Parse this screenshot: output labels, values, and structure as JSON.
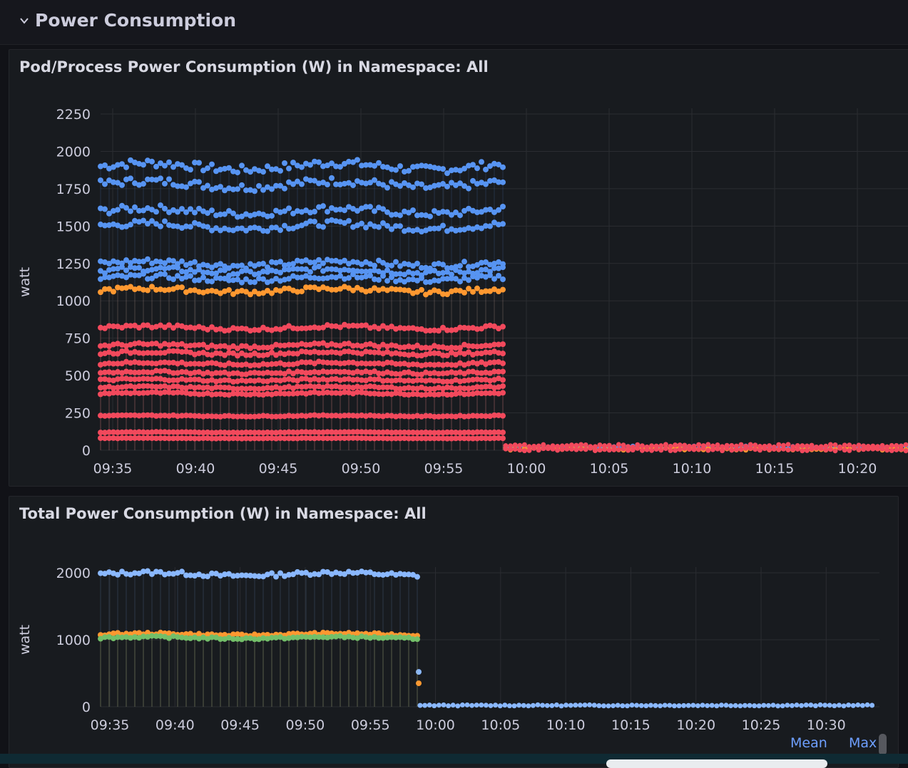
{
  "row": {
    "title": "Power Consumption"
  },
  "colors": {
    "blue": "#5794f2",
    "orange": "#ff9830",
    "red": "#f2495c",
    "green": "#73bf69",
    "lightblue": "#8ab8ff"
  },
  "legend": {
    "mean": "Mean",
    "max": "Max"
  },
  "chart_data": [
    {
      "type": "scatter",
      "title": "Pod/Process Power Consumption (W) in Namespace: All",
      "ylabel": "watt",
      "ylim": [
        0,
        2250
      ],
      "yticks": [
        "0",
        "250",
        "500",
        "750",
        "1000",
        "1250",
        "1500",
        "1750",
        "2000",
        "2250"
      ],
      "xticks": [
        "09:35",
        "09:40",
        "09:45",
        "09:50",
        "09:55",
        "10:00",
        "10:05",
        "10:10",
        "10:15",
        "10:20"
      ],
      "series": [
        {
          "color": "blue",
          "values": [
            1900,
            1780,
            1600,
            1500,
            1250,
            1200,
            1150,
            20
          ]
        },
        {
          "color": "orange",
          "values": [
            1070,
            10
          ]
        },
        {
          "color": "red",
          "values": [
            820,
            700,
            650,
            580,
            520,
            470,
            420,
            380,
            230,
            120,
            80,
            30,
            5
          ]
        }
      ]
    },
    {
      "type": "scatter",
      "title": "Total Power Consumption (W) in Namespace: All",
      "ylabel": "watt",
      "ylim": [
        0,
        2000
      ],
      "yticks": [
        "0",
        "1000",
        "2000"
      ],
      "xticks": [
        "09:35",
        "09:40",
        "09:45",
        "09:50",
        "09:55",
        "10:00",
        "10:05",
        "10:10",
        "10:15",
        "10:20",
        "10:25",
        "10:30"
      ],
      "series": [
        {
          "color": "lightblue",
          "values": [
            1980,
            520,
            20
          ]
        },
        {
          "color": "orange",
          "values": [
            1080,
            350
          ]
        },
        {
          "color": "green",
          "values": [
            1030
          ]
        }
      ]
    }
  ]
}
